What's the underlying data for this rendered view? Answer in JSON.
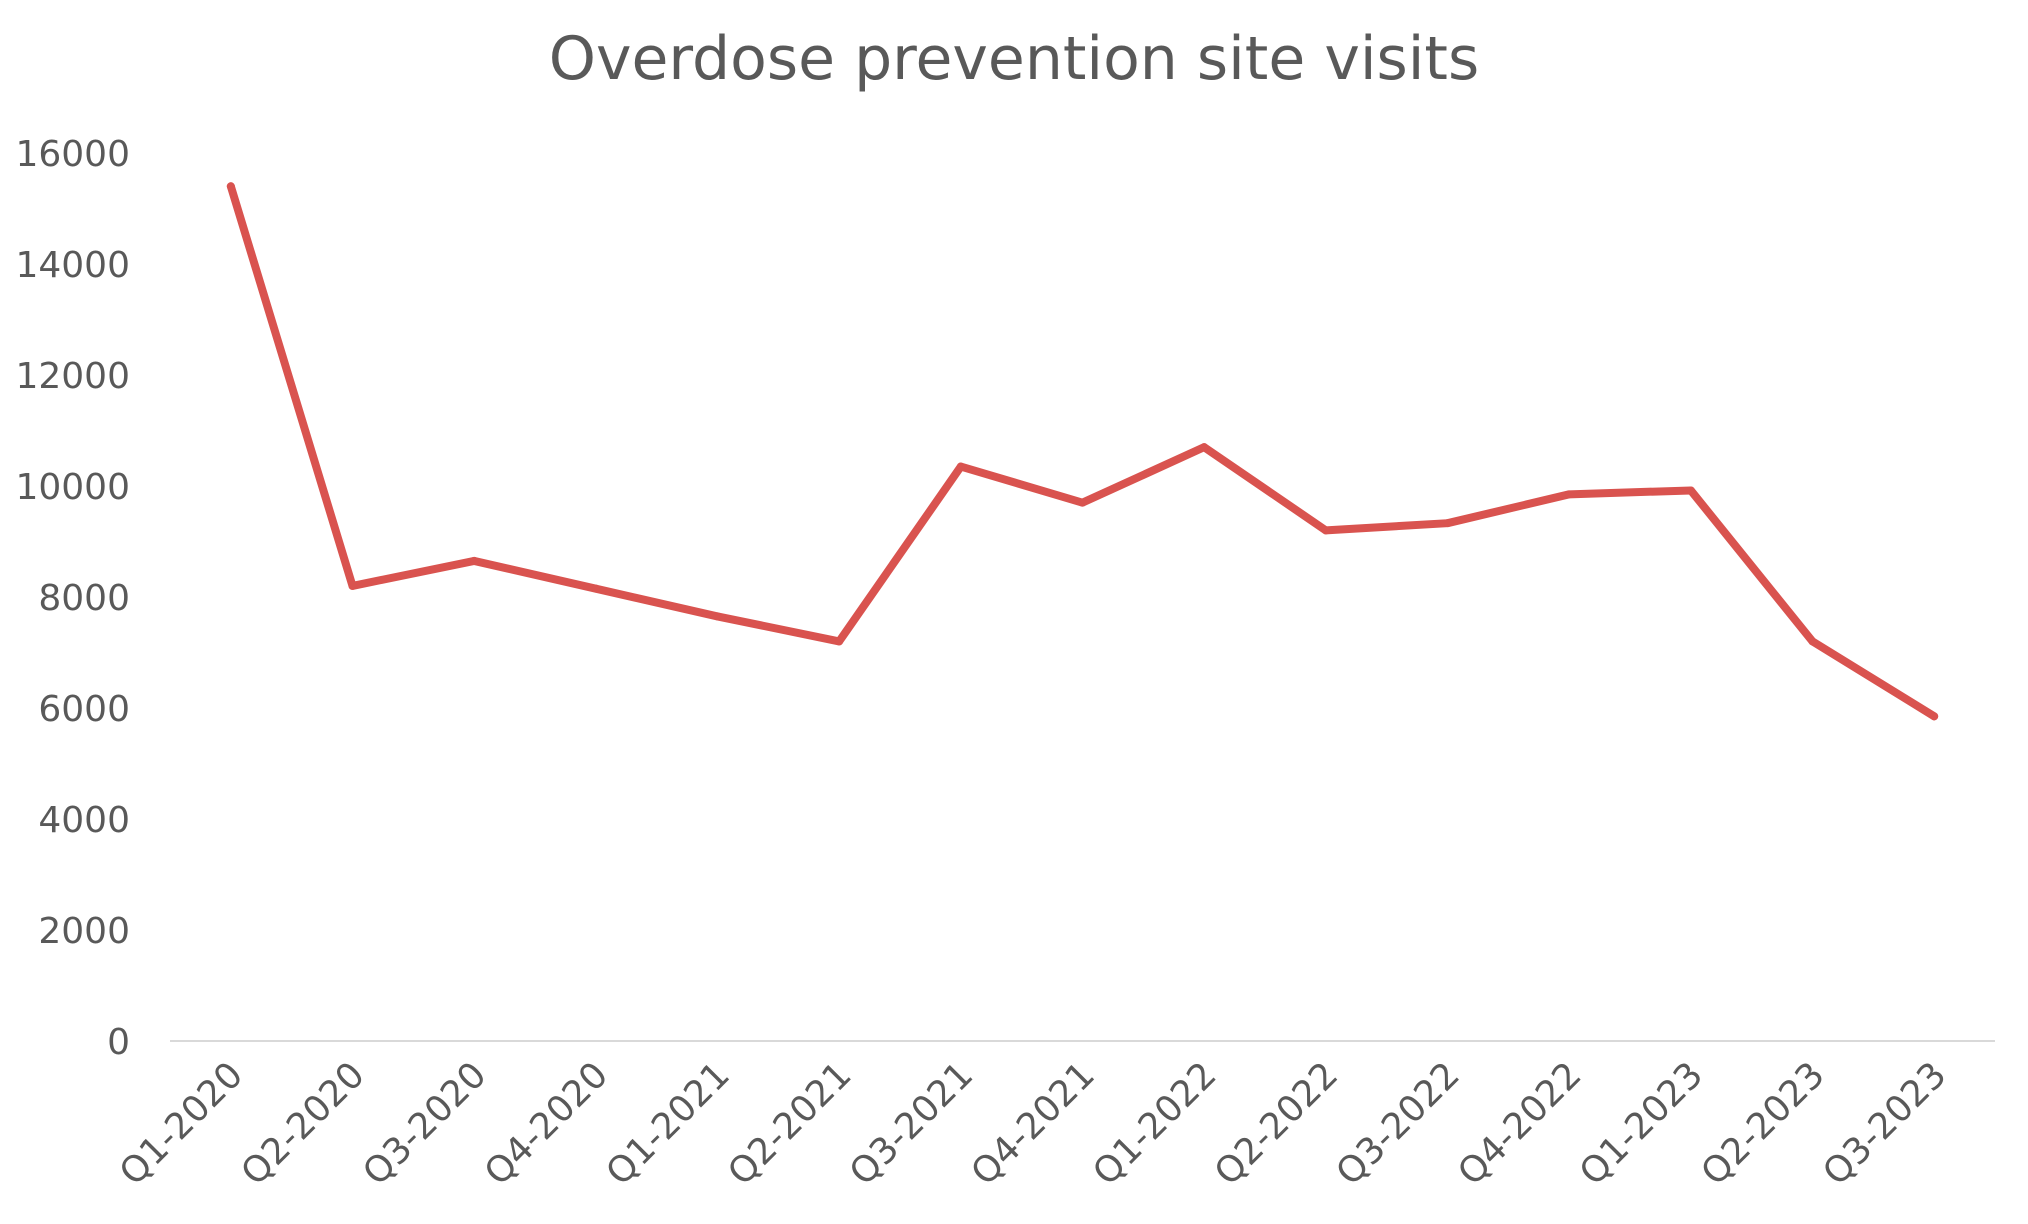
{
  "chart_data": {
    "type": "line",
    "title": "Overdose prevention site visits",
    "xlabel": "",
    "ylabel": "",
    "categories": [
      "Q1-2020",
      "Q2-2020",
      "Q3-2020",
      "Q4-2020",
      "Q1-2021",
      "Q2-2021",
      "Q3-2021",
      "Q4-2021",
      "Q1-2022",
      "Q2-2022",
      "Q3-2022",
      "Q4-2022",
      "Q1-2023",
      "Q2-2023",
      "Q3-2023"
    ],
    "series": [
      {
        "values": [
          15400,
          8200,
          8650,
          8150,
          7650,
          7200,
          10350,
          9700,
          10700,
          9200,
          9330,
          9850,
          9920,
          7200,
          5850
        ],
        "color": "#d9534f"
      }
    ],
    "ylim": [
      0,
      16000
    ],
    "yticks": [
      0,
      2000,
      4000,
      6000,
      8000,
      10000,
      12000,
      14000,
      16000
    ],
    "grid": false,
    "legend": "none",
    "axis_color": "#d9d9d9",
    "text_color": "#595959"
  }
}
